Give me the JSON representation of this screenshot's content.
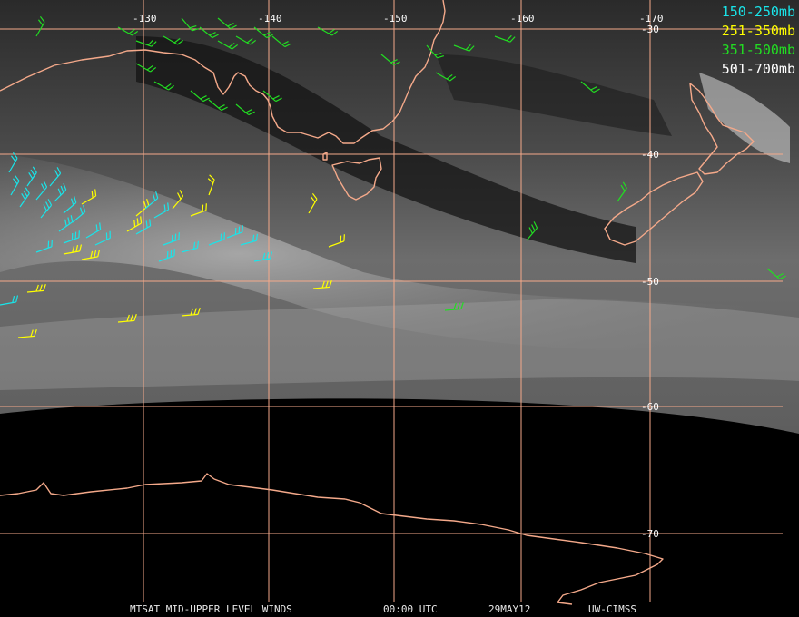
{
  "map": {
    "meridian_labels": [
      "-130",
      "-140",
      "-150",
      "-160",
      "-170"
    ],
    "parallel_labels": [
      "-30",
      "-40",
      "-50",
      "-60",
      "-70"
    ],
    "colors": {
      "grid": "#f4a98a",
      "coast": "#f4a98a",
      "sky_dark": "#111111",
      "cloud": "#9a9a9a",
      "night": "#000000"
    }
  },
  "legend": [
    {
      "label": "150-250mb",
      "color": "#19e5ea"
    },
    {
      "label": "251-350mb",
      "color": "#ffff00"
    },
    {
      "label": "351-500mb",
      "color": "#22dd22"
    },
    {
      "label": "501-700mb",
      "color": "#ffffff"
    }
  ],
  "caption": {
    "product": "MTSAT MID-UPPER LEVEL WINDS",
    "time": "00:00 UTC",
    "date": "29MAY12",
    "source": "UW-CIMSS"
  }
}
